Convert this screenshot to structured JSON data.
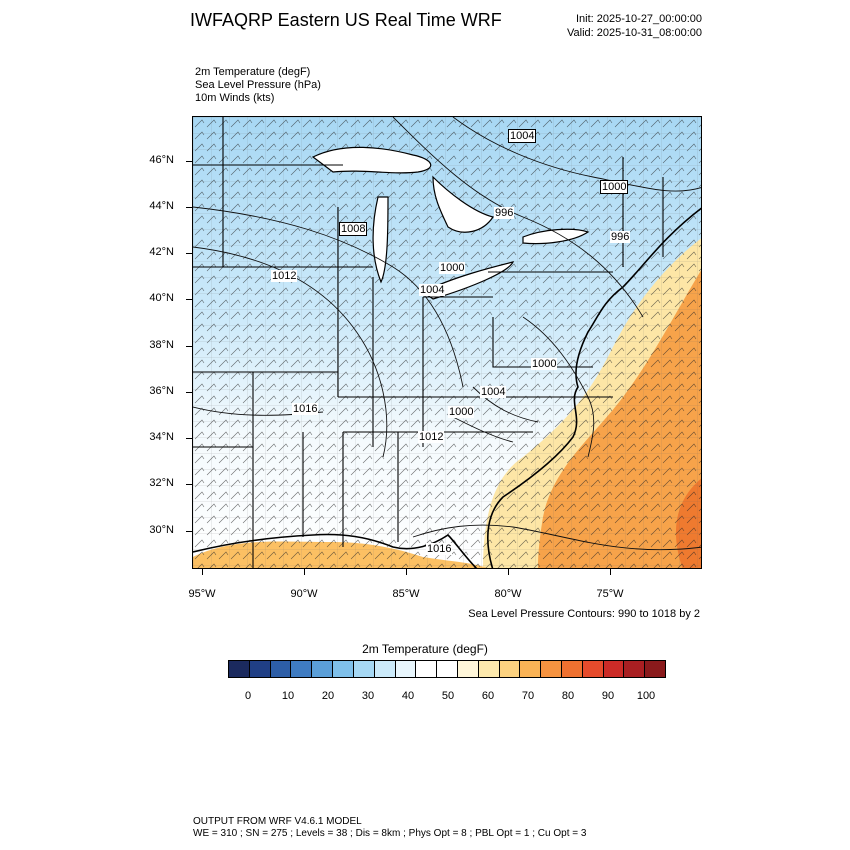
{
  "header": {
    "title": "IWFAQRP Eastern US Real Time WRF",
    "init": "Init: 2025-10-27_00:00:00",
    "valid": "Valid: 2025-10-31_08:00:00"
  },
  "fields": [
    "2m Temperature   (degF)",
    "Sea Level Pressure   (hPa)",
    "10m Winds   (kts)"
  ],
  "map": {
    "lat_labels": [
      "46°N",
      "44°N",
      "42°N",
      "40°N",
      "38°N",
      "36°N",
      "34°N",
      "32°N",
      "30°N"
    ],
    "lon_labels": [
      "95°W",
      "90°W",
      "85°W",
      "80°W",
      "75°W"
    ],
    "pressure_labels": [
      "1004",
      "1000",
      "996",
      "996",
      "1008",
      "1000",
      "1012",
      "1004",
      "1000",
      "1004",
      "1016",
      "1000",
      "1012",
      "1016"
    ],
    "colors": {
      "cold": "#a8d8f4",
      "cool": "#dcf0fb",
      "neutral": "#ffffff",
      "warm": "#fde6a6",
      "hot": "#f7a34a",
      "hotter": "#ef7a2f"
    }
  },
  "contour_note": "Sea Level Pressure Contours: 990 to 1018 by 2",
  "colorbar": {
    "title": "2m Temperature  (degF)",
    "labels": [
      "0",
      "10",
      "20",
      "30",
      "40",
      "50",
      "60",
      "70",
      "80",
      "90",
      "100"
    ],
    "colors": [
      "#1b2a5e",
      "#203f85",
      "#2d5ea7",
      "#3f7cc2",
      "#5b9fd8",
      "#7fc0ea",
      "#a6d8f4",
      "#cbeafa",
      "#e8f6fd",
      "#ffffff",
      "#ffffff",
      "#fff6d9",
      "#fde9ad",
      "#fcd280",
      "#fab356",
      "#f69340",
      "#ef7130",
      "#e64b2c",
      "#cc2b27",
      "#a91f22",
      "#8a1a1c"
    ]
  },
  "footer": {
    "line1": "OUTPUT FROM WRF V4.6.1 MODEL",
    "line2": "WE = 310 ; SN = 275 ; Levels = 38 ; Dis = 8km ; Phys Opt = 8 ; PBL Opt = 1 ; Cu Opt = 3"
  }
}
